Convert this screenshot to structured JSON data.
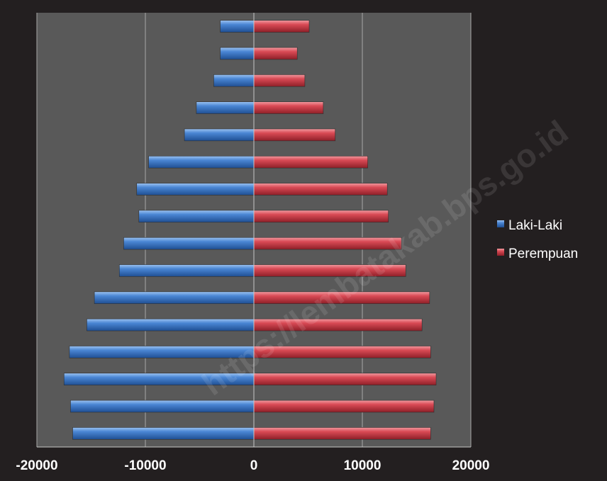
{
  "chart_data": {
    "type": "bar",
    "orientation": "horizontal",
    "layout": "population-pyramid",
    "xlim": [
      -20000,
      20000
    ],
    "xticks": [
      -20000,
      -10000,
      0,
      10000,
      20000
    ],
    "xtick_labels": [
      "-20000",
      "-10000",
      "0",
      "10000",
      "20000"
    ],
    "grid": true,
    "legend_position": "right",
    "series": [
      {
        "name": "Laki-Laki",
        "color": "#4a86d4",
        "values": [
          -16700,
          -16900,
          -17500,
          -17000,
          -15400,
          -14700,
          -12400,
          -12000,
          -10600,
          -10800,
          -9700,
          -6400,
          -5300,
          -3700,
          -3100,
          -3100
        ]
      },
      {
        "name": "Perempuan",
        "color": "#d94a55",
        "values": [
          16300,
          16600,
          16800,
          16300,
          15500,
          16200,
          14000,
          13600,
          12400,
          12300,
          10500,
          7500,
          6400,
          4700,
          4000,
          5100
        ]
      }
    ]
  },
  "watermark": "https://lembatakab.bps.go.id"
}
